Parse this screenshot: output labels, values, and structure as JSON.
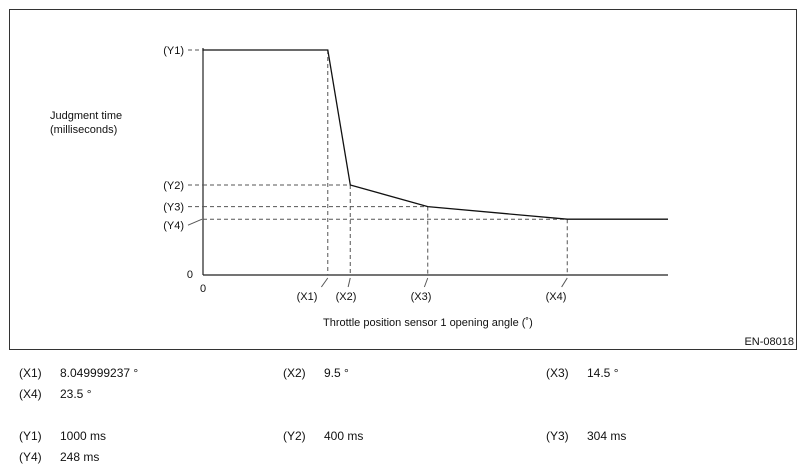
{
  "chart_data": {
    "type": "line",
    "xlabel": "Throttle position sensor 1 opening angle (˚)",
    "ylabel_line1": "Judgment time",
    "ylabel_line2": "(milliseconds)",
    "figure_id": "EN-08018",
    "origin_x_label": "0",
    "origin_y_label": "0",
    "x_ticks": [
      "(X1)",
      "(X2)",
      "(X3)",
      "(X4)"
    ],
    "y_ticks": [
      "(Y1)",
      "(Y2)",
      "(Y3)",
      "(Y4)"
    ],
    "series": [
      {
        "x": [
          0,
          8.049999237,
          9.5,
          14.5,
          23.5,
          30
        ],
        "y": [
          1000,
          1000,
          400,
          304,
          248,
          248
        ]
      }
    ],
    "xlim": [
      0,
      30
    ],
    "ylim": [
      0,
      1000
    ]
  },
  "definitions": {
    "x": [
      {
        "key": "(X1)",
        "value": "8.049999237 °"
      },
      {
        "key": "(X2)",
        "value": "9.5 °"
      },
      {
        "key": "(X3)",
        "value": "14.5 °"
      },
      {
        "key": "(X4)",
        "value": "23.5 °"
      }
    ],
    "y": [
      {
        "key": "(Y1)",
        "value": "1000 ms"
      },
      {
        "key": "(Y2)",
        "value": "400 ms"
      },
      {
        "key": "(Y3)",
        "value": "304 ms"
      },
      {
        "key": "(Y4)",
        "value": "248 ms"
      }
    ]
  }
}
